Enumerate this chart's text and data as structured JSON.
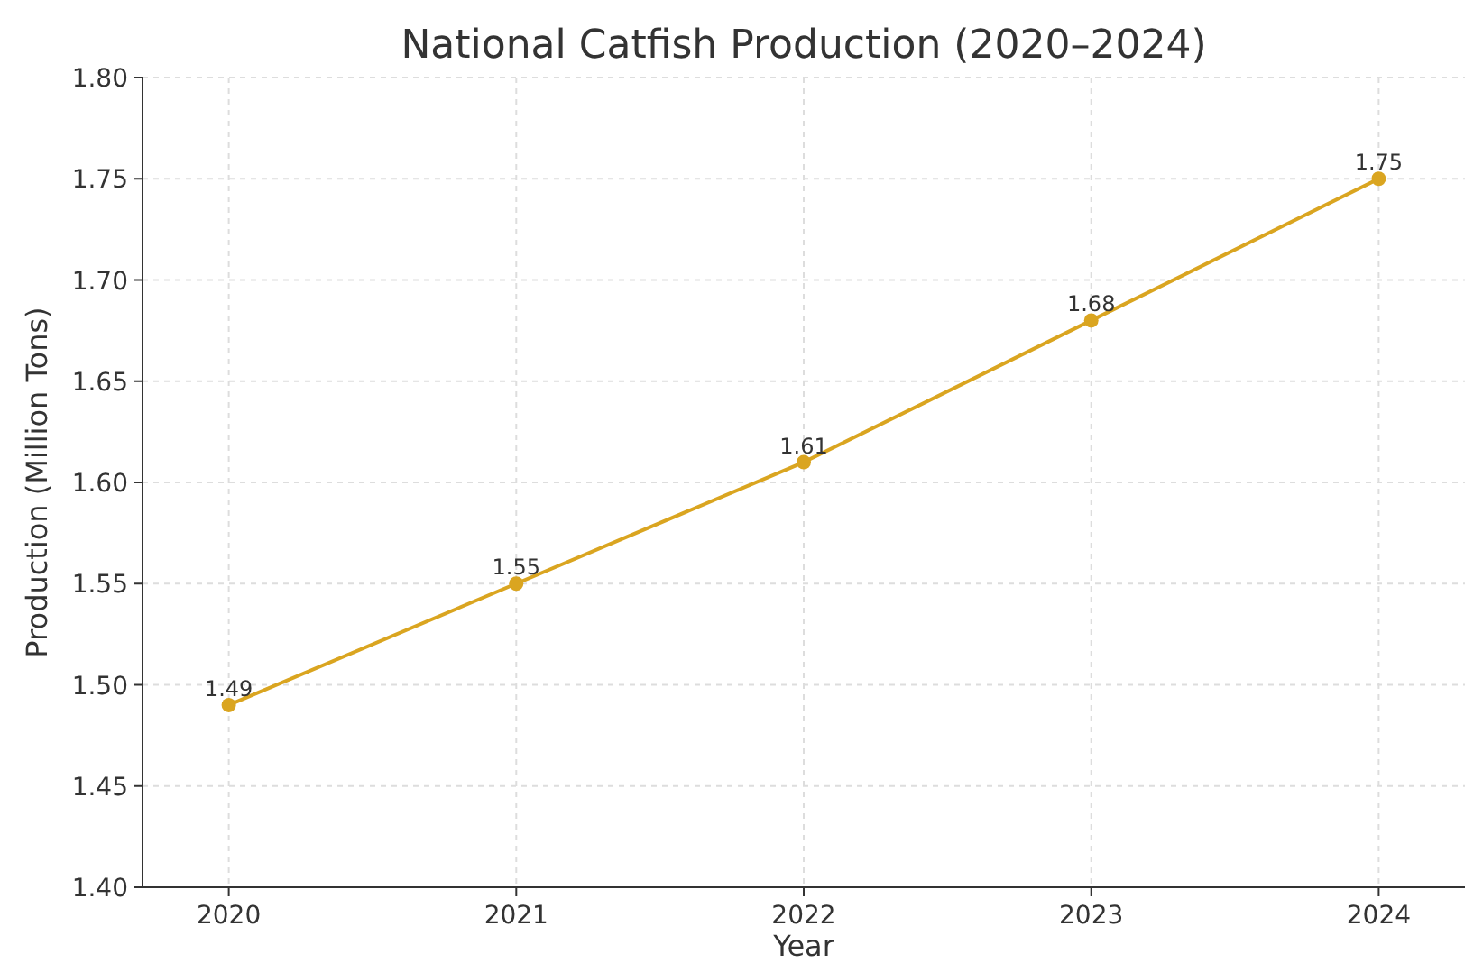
{
  "chart_data": {
    "type": "line",
    "title": "National Catfish Production (2020–2024)",
    "xlabel": "Year",
    "ylabel": "Production (Million Tons)",
    "x": [
      2020,
      2021,
      2022,
      2023,
      2024
    ],
    "series": [
      {
        "color": "#daa520",
        "values": [
          1.49,
          1.55,
          1.61,
          1.68,
          1.75
        ]
      }
    ],
    "xlim": [
      2019.7,
      2024.3
    ],
    "xticks": [
      2020,
      2021,
      2022,
      2023,
      2024
    ],
    "ylim": [
      1.4,
      1.8
    ],
    "yticks": [
      {
        "value": 1.4,
        "label": "1.40"
      },
      1.45,
      {
        "value": 1.5,
        "label": "1.50"
      },
      1.55,
      {
        "value": 1.6,
        "label": "1.60"
      },
      1.65,
      {
        "value": 1.7,
        "label": "1.70"
      },
      1.75,
      {
        "value": 1.8,
        "label": "1.80"
      }
    ],
    "grid": true,
    "marker": "circle",
    "line_style": "solid",
    "data_labels": true
  }
}
